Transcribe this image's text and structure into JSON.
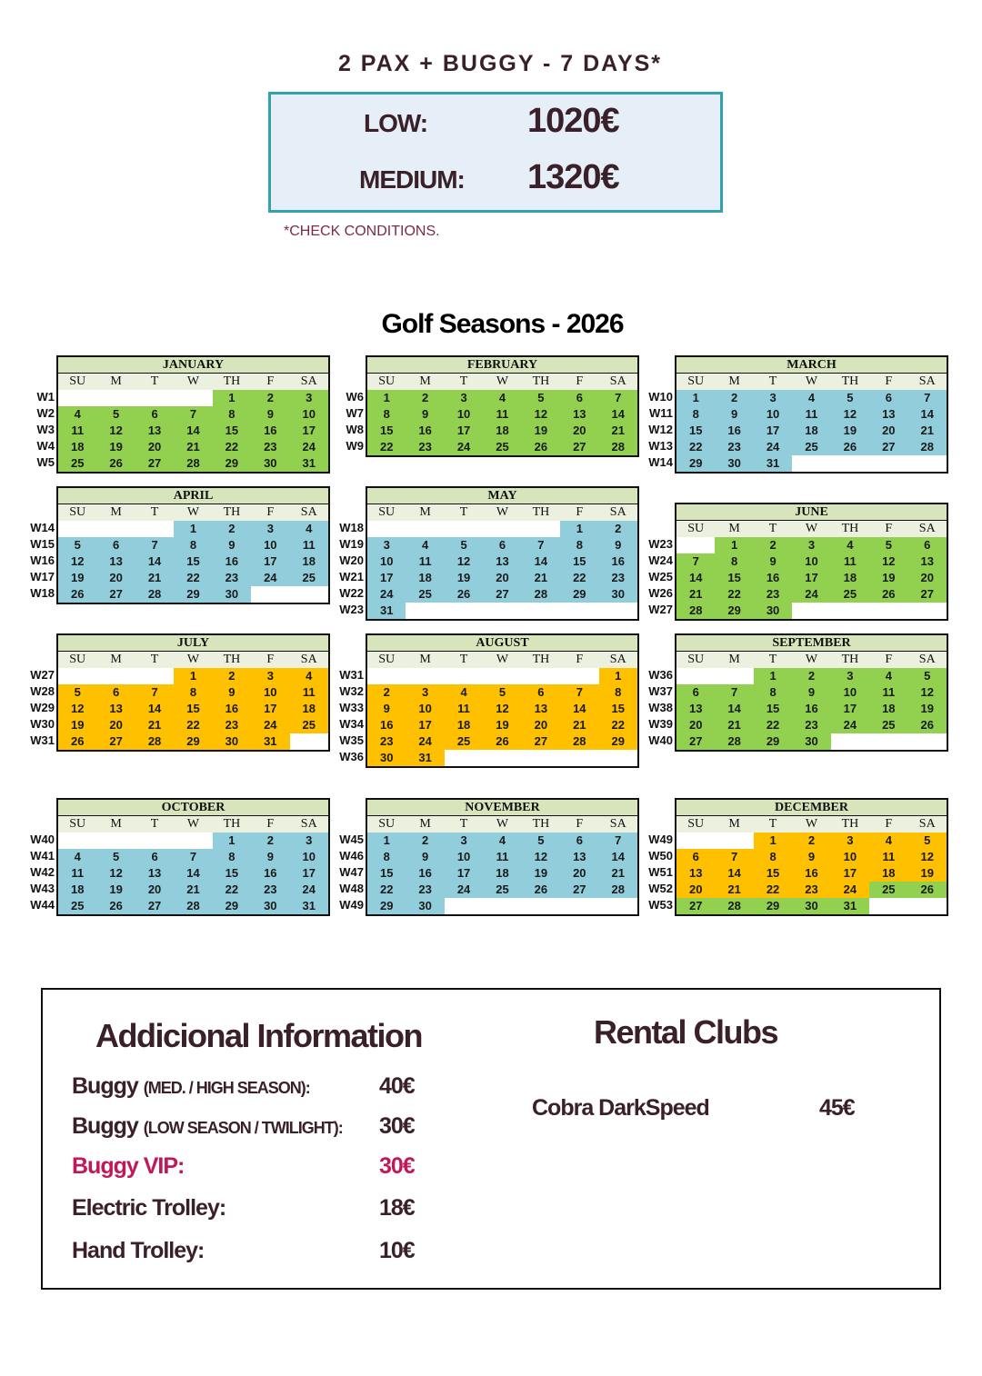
{
  "package": {
    "title": "2 PAX + BUGGY - 7 DAYS*",
    "prices": [
      {
        "label": "LOW:",
        "value": "1020€"
      },
      {
        "label": "MEDIUM:",
        "value": "1320€"
      }
    ],
    "note": "*CHECK CONDITIONS."
  },
  "calendar": {
    "title": "Golf Seasons - 2026",
    "weekday_labels": [
      "SU",
      "M",
      "T",
      "W",
      "TH",
      "F",
      "SA"
    ],
    "season_colors": {
      "green": "#92d050",
      "blue": "#92cddc",
      "orange": "#ffc000"
    },
    "months": [
      {
        "name": "JANUARY",
        "first_weekday": 4,
        "days": 31,
        "weeks": [
          "W1",
          "W2",
          "W3",
          "W4",
          "W5"
        ],
        "seasons": [
          {
            "from": 1,
            "to": 31,
            "color": "green"
          }
        ]
      },
      {
        "name": "FEBRUARY",
        "first_weekday": 0,
        "days": 28,
        "weeks": [
          "W6",
          "W7",
          "W8",
          "W9"
        ],
        "seasons": [
          {
            "from": 1,
            "to": 28,
            "color": "green"
          }
        ]
      },
      {
        "name": "MARCH",
        "first_weekday": 0,
        "days": 31,
        "weeks": [
          "W10",
          "W11",
          "W12",
          "W13",
          "W14"
        ],
        "seasons": [
          {
            "from": 1,
            "to": 31,
            "color": "blue"
          }
        ]
      },
      {
        "name": "APRIL",
        "first_weekday": 3,
        "days": 30,
        "weeks": [
          "W14",
          "W15",
          "W16",
          "W17",
          "W18"
        ],
        "seasons": [
          {
            "from": 1,
            "to": 30,
            "color": "blue"
          }
        ]
      },
      {
        "name": "MAY",
        "first_weekday": 5,
        "days": 31,
        "weeks": [
          "W18",
          "W19",
          "W20",
          "W21",
          "W22",
          "W23"
        ],
        "seasons": [
          {
            "from": 1,
            "to": 31,
            "color": "blue"
          }
        ]
      },
      {
        "name": "JUNE",
        "first_weekday": 1,
        "days": 30,
        "weeks": [
          "W23",
          "W24",
          "W25",
          "W26",
          "W27"
        ],
        "seasons": [
          {
            "from": 1,
            "to": 30,
            "color": "green"
          }
        ]
      },
      {
        "name": "JULY",
        "first_weekday": 3,
        "days": 31,
        "weeks": [
          "W27",
          "W28",
          "W29",
          "W30",
          "W31"
        ],
        "seasons": [
          {
            "from": 1,
            "to": 31,
            "color": "orange"
          }
        ]
      },
      {
        "name": "AUGUST",
        "first_weekday": 6,
        "days": 31,
        "weeks": [
          "W31",
          "W32",
          "W33",
          "W34",
          "W35",
          "W36"
        ],
        "seasons": [
          {
            "from": 1,
            "to": 31,
            "color": "orange"
          }
        ]
      },
      {
        "name": "SEPTEMBER",
        "first_weekday": 2,
        "days": 30,
        "weeks": [
          "W36",
          "W37",
          "W38",
          "W39",
          "W40"
        ],
        "seasons": [
          {
            "from": 1,
            "to": 30,
            "color": "green"
          }
        ]
      },
      {
        "name": "OCTOBER",
        "first_weekday": 4,
        "days": 31,
        "weeks": [
          "W40",
          "W41",
          "W42",
          "W43",
          "W44"
        ],
        "seasons": [
          {
            "from": 1,
            "to": 31,
            "color": "blue"
          }
        ]
      },
      {
        "name": "NOVEMBER",
        "first_weekday": 0,
        "days": 30,
        "weeks": [
          "W45",
          "W46",
          "W47",
          "W48",
          "W49"
        ],
        "seasons": [
          {
            "from": 1,
            "to": 30,
            "color": "blue"
          }
        ]
      },
      {
        "name": "DECEMBER",
        "first_weekday": 2,
        "days": 31,
        "weeks": [
          "W49",
          "W50",
          "W51",
          "W52",
          "W53"
        ],
        "seasons": [
          {
            "from": 1,
            "to": 24,
            "color": "orange"
          },
          {
            "from": 25,
            "to": 31,
            "color": "green"
          }
        ]
      }
    ]
  },
  "info": {
    "title": "Addicional Information",
    "items": [
      {
        "label": "Buggy",
        "detail": "(MED. / HIGH SEASON):",
        "price": "40€"
      },
      {
        "label": "Buggy",
        "detail": "(LOW SEASON / TWILIGHT):",
        "price": "30€"
      },
      {
        "label": "Buggy VIP:",
        "detail": "",
        "price": "30€",
        "highlight_color": "#c0185a"
      },
      {
        "label": "Electric Trolley:",
        "detail": "",
        "price": "18€"
      },
      {
        "label": "Hand Trolley:",
        "detail": "",
        "price": "10€"
      }
    ]
  },
  "rental": {
    "title": "Rental Clubs",
    "items": [
      {
        "label": "Cobra DarkSpeed",
        "price": "45€"
      }
    ]
  }
}
